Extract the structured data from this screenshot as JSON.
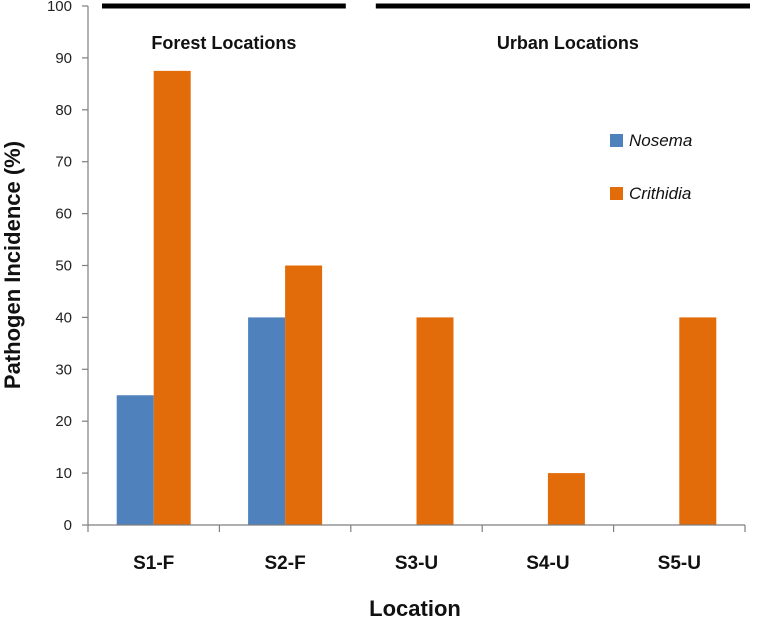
{
  "chart_data": {
    "type": "bar",
    "categories": [
      "S1-F",
      "S2-F",
      "S3-U",
      "S4-U",
      "S5-U"
    ],
    "series": [
      {
        "name": "Nosema",
        "values": [
          25,
          40,
          0,
          0,
          0
        ],
        "color": "#4f81bd"
      },
      {
        "name": "Crithidia",
        "values": [
          87.5,
          50,
          40,
          10,
          40
        ],
        "color": "#e36c0a"
      }
    ],
    "title": "",
    "xlabel": "Location",
    "ylabel": "Pathogen Incidence (%)",
    "ylim": [
      0,
      100
    ],
    "yticks": [
      0,
      10,
      20,
      30,
      40,
      50,
      60,
      70,
      80,
      90,
      100
    ],
    "grid": false,
    "legend_position": "right",
    "groups": [
      {
        "label": "Forest Locations",
        "categories": [
          "S1-F",
          "S2-F"
        ]
      },
      {
        "label": "Urban Locations",
        "categories": [
          "S3-U",
          "S4-U",
          "S5-U"
        ]
      }
    ]
  }
}
